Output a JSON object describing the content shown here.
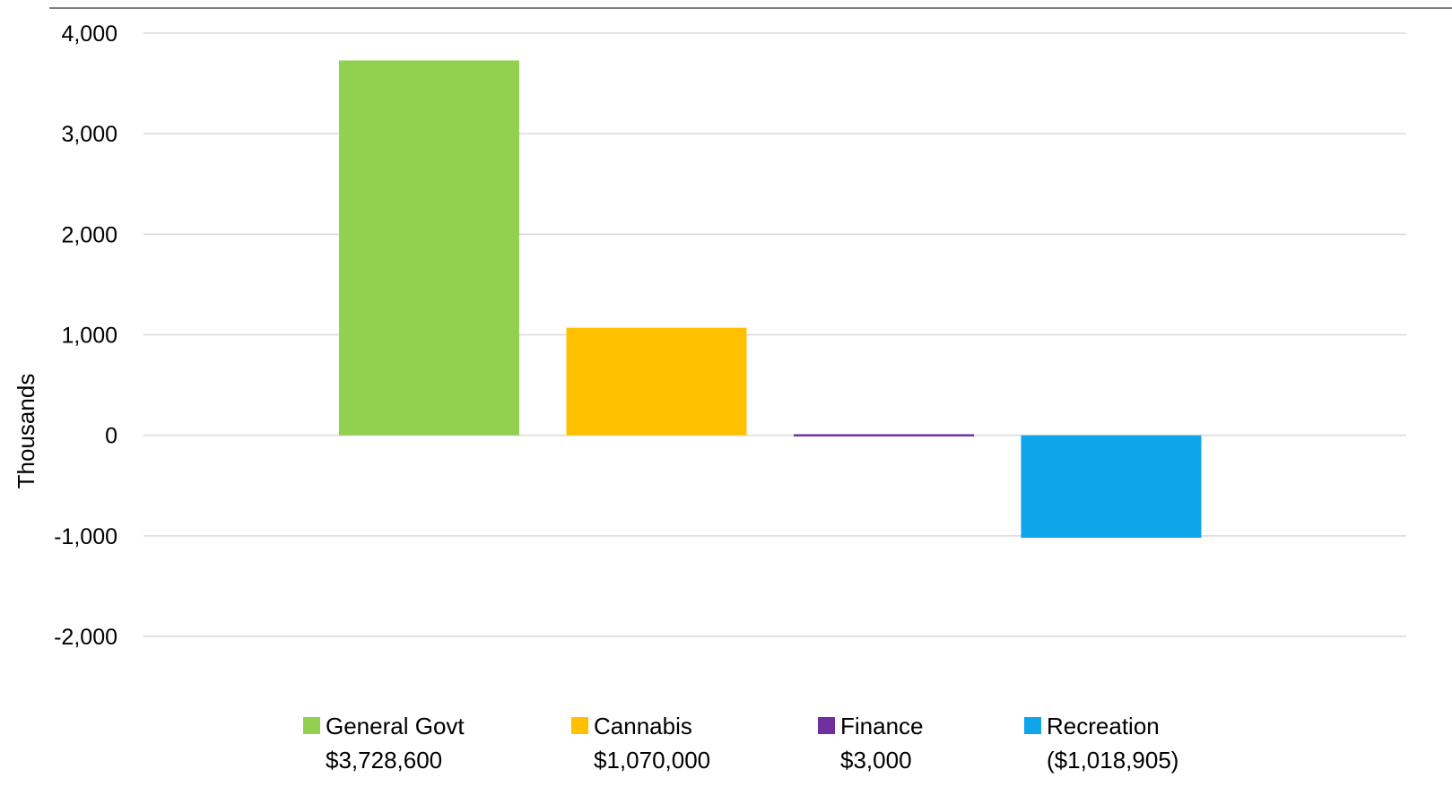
{
  "chart_data": {
    "type": "bar",
    "ylabel": "Thousands",
    "ylim": [
      -2000,
      4000
    ],
    "y_ticks": [
      4000,
      3000,
      2000,
      1000,
      0,
      -1000,
      -2000
    ],
    "y_tick_labels": [
      "4,000",
      "3,000",
      "2,000",
      "1,000",
      "0",
      "-1,000",
      "-2,000"
    ],
    "grid": true,
    "legend_position": "bottom",
    "categories": [
      "General Govt",
      "Cannabis",
      "Finance",
      "Recreation"
    ],
    "series": [
      {
        "values": [
          3728.6,
          1070.0,
          3.0,
          -1018.905
        ],
        "colors": [
          "#92D050",
          "#FFC000",
          "#7030A0",
          "#0EA5EA"
        ],
        "legend_amounts": [
          "$3,728,600",
          "$1,070,000",
          "$3,000",
          "($1,018,905)"
        ]
      }
    ]
  }
}
